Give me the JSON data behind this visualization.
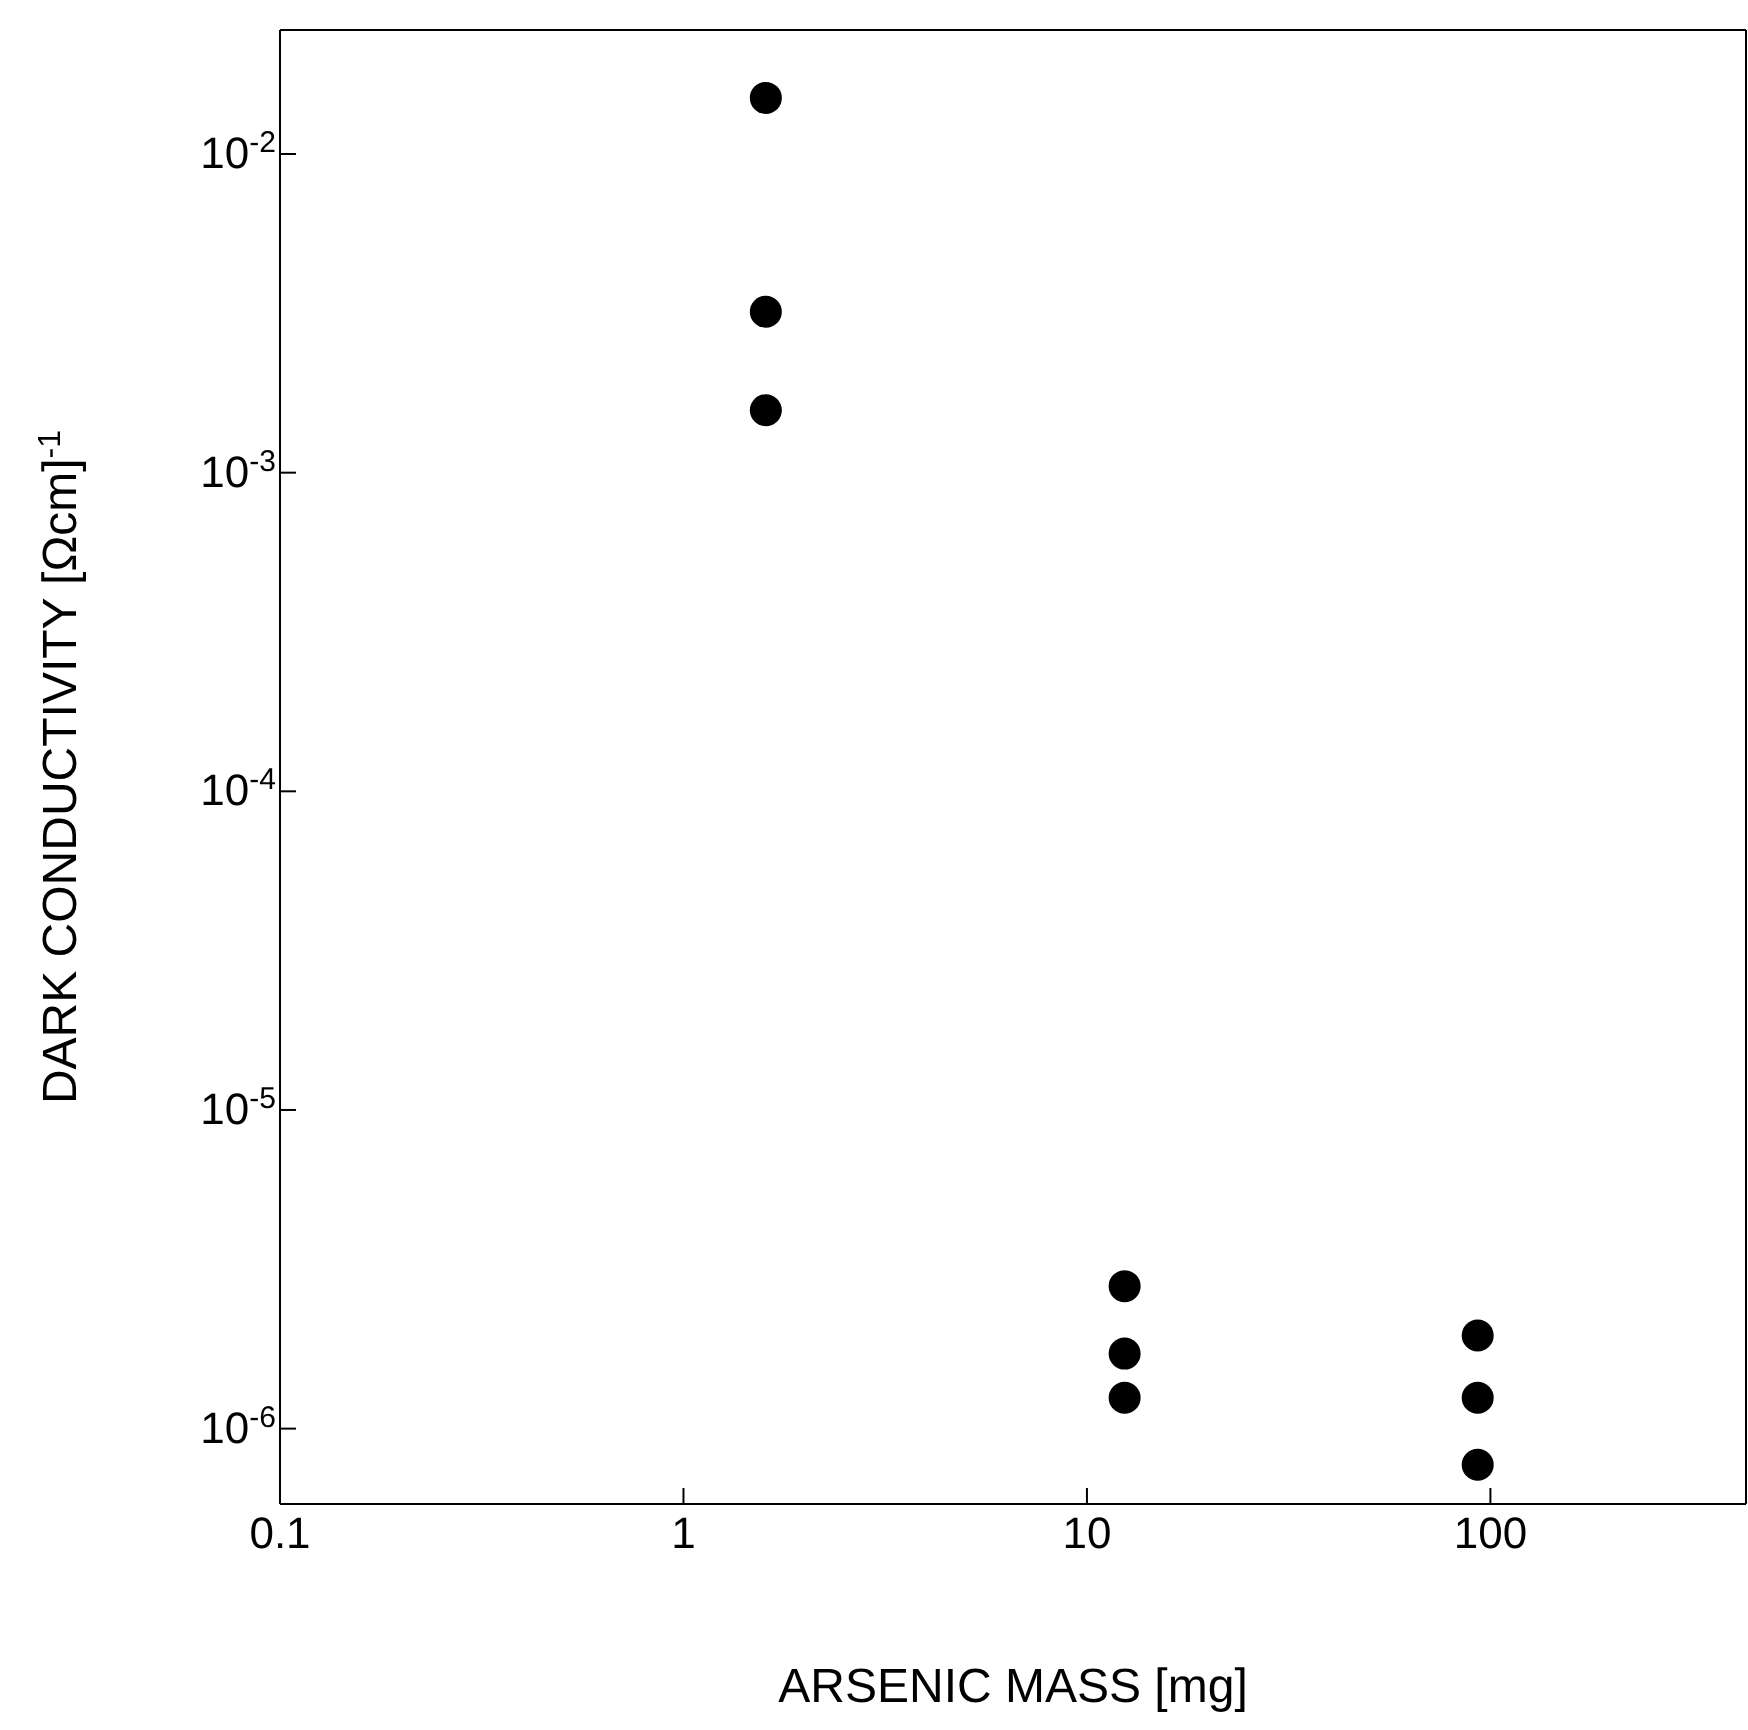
{
  "chart_data": {
    "type": "scatter",
    "xlabel": "ARSENIC MASS [mg]",
    "ylabel": "DARK CONDUCTIVITY [Ωcm]$^{-1}$",
    "x": [
      1.6,
      1.6,
      1.6,
      12.4,
      12.4,
      12.4,
      93,
      93,
      93
    ],
    "values": [
      0.015,
      0.0032,
      0.00157,
      2.8e-06,
      1.72e-06,
      1.25e-06,
      1.96e-06,
      1.25e-06,
      7.7e-07
    ],
    "color": "#000000",
    "marker": "circle",
    "log": "xy",
    "grid": false,
    "legend": false,
    "xlim": [
      0.1,
      430
    ],
    "xticks": [
      0.1,
      1,
      10,
      100
    ],
    "ylim": [
      5.8e-07,
      0.0245
    ],
    "yticks": [
      {
        "value": 0.01,
        "label": "10$^{-2}$"
      },
      {
        "value": 0.001,
        "label": "10$^{-3}$"
      },
      {
        "value": 0.0001,
        "label": "10$^{-4}$"
      },
      {
        "value": 1e-05,
        "label": "10$^{-5}$"
      },
      {
        "value": 1e-06,
        "label": "10$^{-6}$"
      }
    ]
  }
}
